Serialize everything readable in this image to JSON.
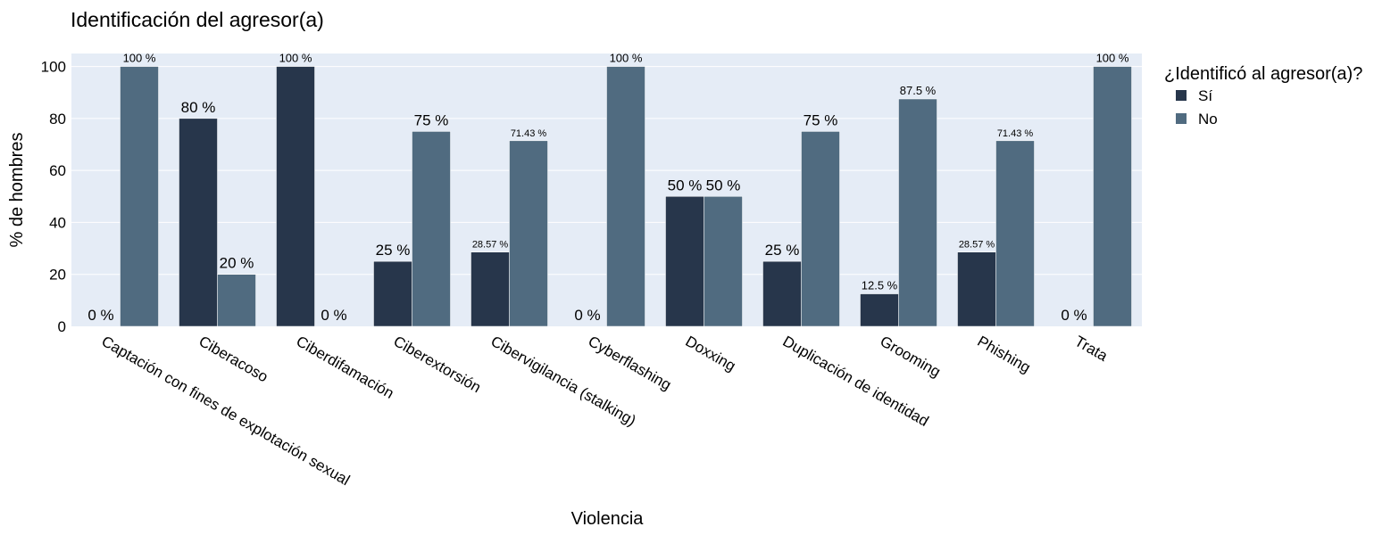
{
  "colors": {
    "plot_bg": "#e5ecf6",
    "grid": "#ffffff",
    "series": [
      "#27364b",
      "#506b80"
    ]
  },
  "chart_data": {
    "type": "bar",
    "title": "Identificación del agresor(a)",
    "xlabel": "Violencia",
    "ylabel": "% de hombres",
    "ylim": [
      0,
      105
    ],
    "yticks": [
      0,
      20,
      40,
      60,
      80,
      100
    ],
    "grid": true,
    "legend": {
      "title": "¿Identificó al agresor(a)?",
      "position": "top-right"
    },
    "categories": [
      "Captación con fines de explotación sexual",
      "Ciberacoso",
      "Ciberdifamación",
      "Ciberextorsión",
      "Cibervigilancia (stalking)",
      "Cyberflashing",
      "Doxxing",
      "Duplicación de identidad",
      "Grooming",
      "Phishing",
      "Trata"
    ],
    "series": [
      {
        "name": "Sí",
        "values": [
          0,
          80,
          100,
          25,
          28.57,
          0,
          50,
          25,
          12.5,
          28.57,
          0
        ],
        "labels": [
          "0 %",
          "80 %",
          "100 %",
          "25 %",
          "28.57 %",
          "0 %",
          "50 %",
          "25 %",
          "12.5 %",
          "28.57 %",
          "0 %"
        ]
      },
      {
        "name": "No",
        "values": [
          100,
          20,
          0,
          75,
          71.43,
          100,
          50,
          75,
          87.5,
          71.43,
          100
        ],
        "labels": [
          "100 %",
          "20 %",
          "0 %",
          "75 %",
          "71.43 %",
          "100 %",
          "50 %",
          "75 %",
          "87.5 %",
          "71.43 %",
          "100 %"
        ]
      }
    ]
  }
}
